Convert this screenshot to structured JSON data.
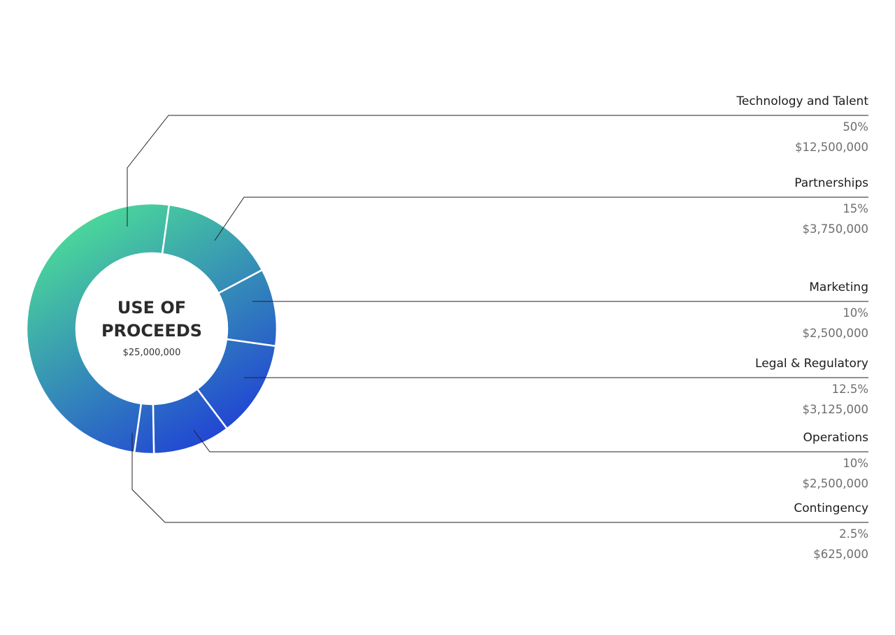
{
  "chart_data": {
    "type": "pie",
    "variant": "donut",
    "title": "USE OF PROCEEDS",
    "title_lines": [
      "USE OF",
      "PROCEEDS"
    ],
    "total": "$25,000,000",
    "slices": [
      {
        "name": "Technology and Talent",
        "percent": 50,
        "percent_label": "50%",
        "amount": "$12,500,000",
        "value": 12500000
      },
      {
        "name": "Partnerships",
        "percent": 15,
        "percent_label": "15%",
        "amount": "$3,750,000",
        "value": 3750000
      },
      {
        "name": "Marketing",
        "percent": 10,
        "percent_label": "10%",
        "amount": "$2,500,000",
        "value": 2500000
      },
      {
        "name": "Legal & Regulatory",
        "percent": 12.5,
        "percent_label": "12.5%",
        "amount": "$3,125,000",
        "value": 3125000
      },
      {
        "name": "Operations",
        "percent": 10,
        "percent_label": "10%",
        "amount": "$2,500,000",
        "value": 2500000
      },
      {
        "name": "Contingency",
        "percent": 2.5,
        "percent_label": "2.5%",
        "amount": "$625,000",
        "value": 625000
      }
    ],
    "legend_placement": "right",
    "gradient_colors": [
      "#4cdc98",
      "#1f3fd6"
    ],
    "separator_color": "#ffffff"
  }
}
